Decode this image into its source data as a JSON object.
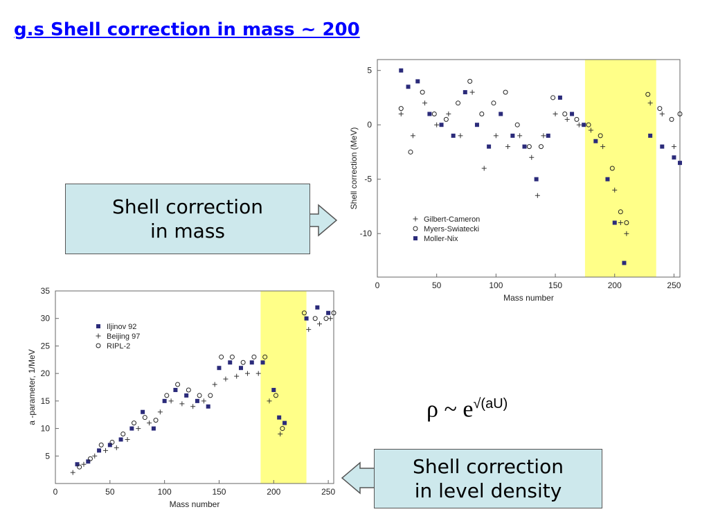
{
  "title": "g.s Shell correction in mass ~ 200",
  "callout_mass": {
    "line1": "Shell correction",
    "line2": "in mass"
  },
  "callout_density": {
    "line1": "Shell correction",
    "line2": "in level density"
  },
  "formula": {
    "base": "ρ ~ e",
    "exponent": "√(aU)"
  },
  "chart_data": [
    {
      "type": "scatter",
      "title": "",
      "xlabel": "Mass number",
      "ylabel": "Shell correction (MeV)",
      "xlim": [
        0,
        255
      ],
      "ylim": [
        -14,
        6
      ],
      "xticks": [
        0,
        50,
        100,
        150,
        200,
        250
      ],
      "yticks": [
        5,
        0,
        -5,
        -10
      ],
      "highlight_band": {
        "x": [
          175,
          235
        ],
        "color": "#ffff88"
      },
      "legend_position": "bottom-left",
      "series": [
        {
          "name": "Gilbert-Cameron",
          "marker": "plus",
          "x": [
            20,
            30,
            40,
            50,
            60,
            70,
            80,
            90,
            100,
            110,
            120,
            130,
            135,
            140,
            150,
            160,
            170,
            180,
            190,
            200,
            205,
            210,
            230,
            240,
            250
          ],
          "y": [
            1,
            -1,
            2,
            0,
            1,
            -1,
            3,
            -4,
            -1,
            -2,
            -1,
            -3,
            -6.5,
            -1,
            1,
            0.5,
            0,
            -0.5,
            -2,
            -6,
            -9,
            -10,
            2,
            1,
            -2
          ]
        },
        {
          "name": "Myers-Swiatecki",
          "marker": "circle",
          "x": [
            20,
            28,
            38,
            48,
            58,
            68,
            78,
            88,
            98,
            108,
            118,
            128,
            138,
            148,
            158,
            168,
            178,
            188,
            198,
            205,
            210,
            228,
            238,
            248,
            255
          ],
          "y": [
            1.5,
            -2.5,
            3,
            1,
            0.5,
            2,
            4,
            1,
            2,
            3,
            0,
            -2,
            -2,
            2.5,
            1,
            0.5,
            0,
            -1,
            -4,
            -8,
            -9,
            2.8,
            1.5,
            0.5,
            1
          ]
        },
        {
          "name": "Moller-Nix",
          "marker": "square",
          "x": [
            20,
            26,
            34,
            44,
            54,
            64,
            74,
            84,
            94,
            104,
            114,
            124,
            134,
            144,
            154,
            164,
            174,
            184,
            194,
            200,
            208,
            230,
            240,
            250,
            255
          ],
          "y": [
            5,
            3.5,
            4,
            1,
            0,
            -1,
            3,
            0,
            -2,
            1,
            -1,
            -2,
            -5,
            -1,
            2.5,
            1,
            0,
            -1.5,
            -5,
            -9,
            -12.7,
            -1,
            -2,
            -3,
            -3.5
          ]
        }
      ]
    },
    {
      "type": "scatter",
      "title": "",
      "xlabel": "Mass number",
      "ylabel": "a -parameter,  1/MeV",
      "xlim": [
        0,
        255
      ],
      "ylim": [
        0,
        35
      ],
      "xticks": [
        0,
        50,
        100,
        150,
        200,
        250
      ],
      "yticks": [
        5,
        10,
        15,
        20,
        25,
        30,
        35
      ],
      "highlight_band": {
        "x": [
          188,
          230
        ],
        "color": "#ffff88"
      },
      "legend_position": "top-left",
      "series": [
        {
          "name": "Iljinov 92",
          "marker": "square",
          "x": [
            20,
            30,
            40,
            50,
            60,
            70,
            80,
            90,
            100,
            110,
            120,
            130,
            140,
            150,
            160,
            170,
            180,
            190,
            200,
            205,
            210,
            230,
            240,
            250
          ],
          "y": [
            3.5,
            4,
            6,
            7,
            8,
            10,
            13,
            10,
            15,
            17,
            16,
            15,
            14,
            21,
            22,
            21,
            22,
            22,
            17,
            12,
            11,
            30,
            32,
            31
          ]
        },
        {
          "name": "Beijing 97",
          "marker": "plus",
          "x": [
            16,
            26,
            36,
            46,
            56,
            66,
            76,
            86,
            96,
            106,
            116,
            126,
            136,
            146,
            156,
            166,
            176,
            186,
            196,
            206,
            232,
            242,
            252
          ],
          "y": [
            2,
            3.5,
            5,
            6,
            6.5,
            8,
            10,
            11,
            13,
            15,
            14.5,
            14,
            15,
            18,
            19,
            19.5,
            20,
            20,
            15,
            9,
            28,
            29,
            30
          ]
        },
        {
          "name": "RIPL-2",
          "marker": "circle",
          "x": [
            22,
            32,
            42,
            52,
            62,
            72,
            82,
            92,
            102,
            112,
            122,
            132,
            142,
            152,
            162,
            172,
            182,
            192,
            202,
            208,
            228,
            238,
            248,
            255
          ],
          "y": [
            3,
            4.5,
            7,
            7.5,
            9,
            11,
            12,
            11.5,
            16,
            18,
            17,
            16,
            16,
            23,
            23,
            22,
            23,
            23,
            16,
            10,
            31,
            30,
            30,
            31
          ]
        }
      ]
    }
  ],
  "colors": {
    "title": "#0000ff",
    "callout_fill": "#cde8ec",
    "band": "#ffff88",
    "series_square": "#2b2b7a"
  }
}
